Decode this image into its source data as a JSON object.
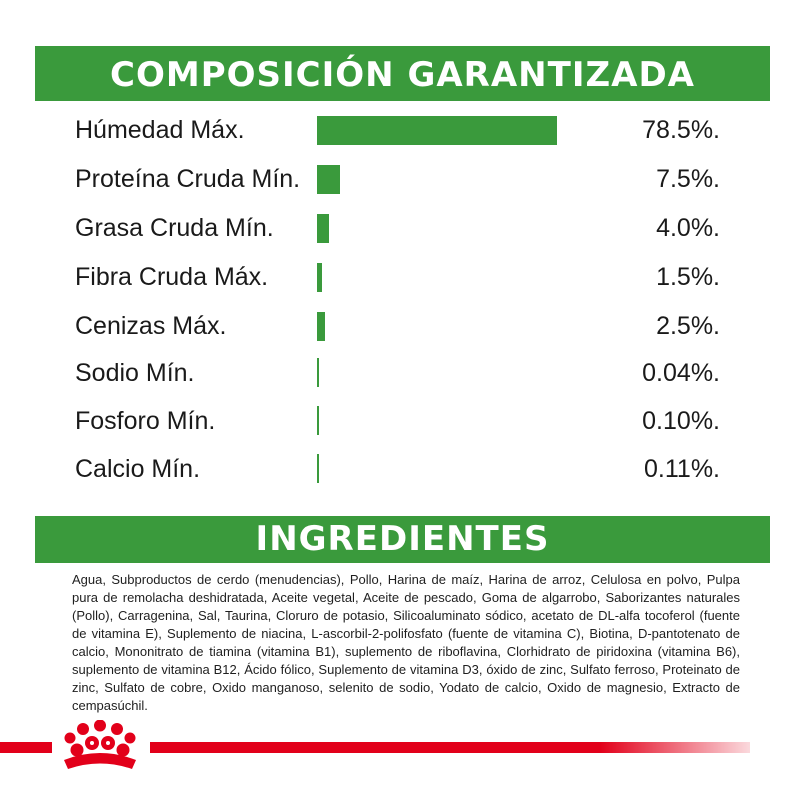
{
  "section_titles": {
    "composition": "COMPOSICIÓN GARANTIZADA",
    "ingredients": "INGREDIENTES"
  },
  "chart_data": {
    "type": "bar",
    "orientation": "horizontal",
    "categories": [
      "Húmedad Máx.",
      "Proteína Cruda Mín.",
      "Grasa Cruda Mín.",
      "Fibra Cruda Máx.",
      "Cenizas Máx.",
      "Sodio Mín.",
      "Fosforo Mín.",
      "Calcio Mín."
    ],
    "values": [
      78.5,
      7.5,
      4.0,
      1.5,
      2.5,
      0.04,
      0.1,
      0.11
    ],
    "value_labels": [
      "78.5%.",
      "7.5%.",
      "4.0%.",
      "1.5%.",
      "2.5%.",
      "0.04%.",
      "0.10%.",
      "0.11%."
    ],
    "title": "",
    "xlabel": "",
    "ylabel": "",
    "xlim": [
      0,
      78.5
    ],
    "grid": false,
    "bar_color": "#3a9a3c"
  },
  "ingredients_text": "Agua, Subproductos de cerdo (menudencias), Pollo, Harina de maíz, Harina de arroz, Celulosa en polvo, Pulpa pura de remolacha deshidratada, Aceite vegetal, Aceite de pescado, Goma de algarrobo, Saborizantes naturales (Pollo), Carragenina, Sal, Taurina, Cloruro de potasio, Silicoaluminato sódico, acetato de DL-alfa tocoferol (fuente de vitamina E), Suplemento de niacina, L-ascorbil-2-polifosfato (fuente de vitamina C), Biotina, D-pantotenato de calcio, Mononitrato de tiamina (vitamina B1), suplemento de riboflavina, Clorhidrato de piridoxina (vitamina B6), suplemento de vitamina B12, Ácido fólico, Suplemento de vitamina D3, óxido de zinc, Sulfato ferroso, Proteinato de zinc, Sulfato de cobre, Oxido manganoso, selenito de sodio, Yodato de calcio, Oxido de magnesio, Extracto de cempasúchil.",
  "colors": {
    "brand_green": "#3a9a3c",
    "brand_red": "#e2001a"
  },
  "logo": {
    "icon": "crown-icon"
  }
}
